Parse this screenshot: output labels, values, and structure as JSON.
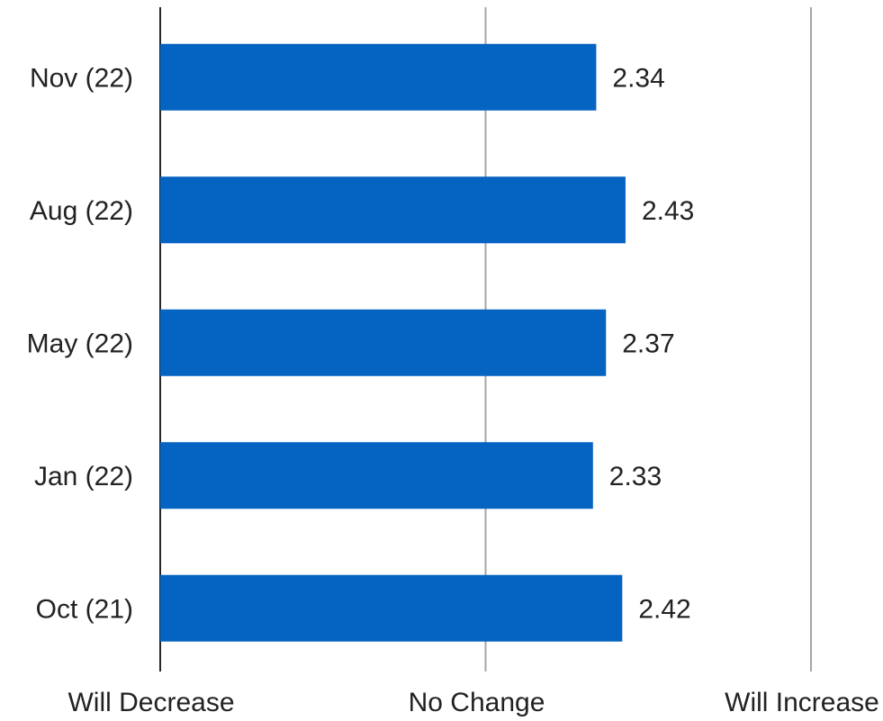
{
  "chart_data": {
    "type": "bar",
    "orientation": "horizontal",
    "title": "",
    "xlabel": "",
    "ylabel": "",
    "categories": [
      "Nov (22)",
      "Aug (22)",
      "May (22)",
      "Jan (22)",
      "Oct (21)"
    ],
    "values": [
      2.34,
      2.43,
      2.37,
      2.33,
      2.42
    ],
    "value_labels": [
      "2.34",
      "2.43",
      "2.37",
      "2.33",
      "2.42"
    ],
    "xlim": [
      1,
      3
    ],
    "x_tick_values": [
      1,
      2,
      3
    ],
    "x_tick_labels": [
      "Will Decrease",
      "No Change",
      "Will Increase"
    ],
    "bar_color": "#0563C1",
    "gridline_color": "#A6A6A6",
    "axis_color": "#262626",
    "grid": true,
    "legend": "none"
  }
}
